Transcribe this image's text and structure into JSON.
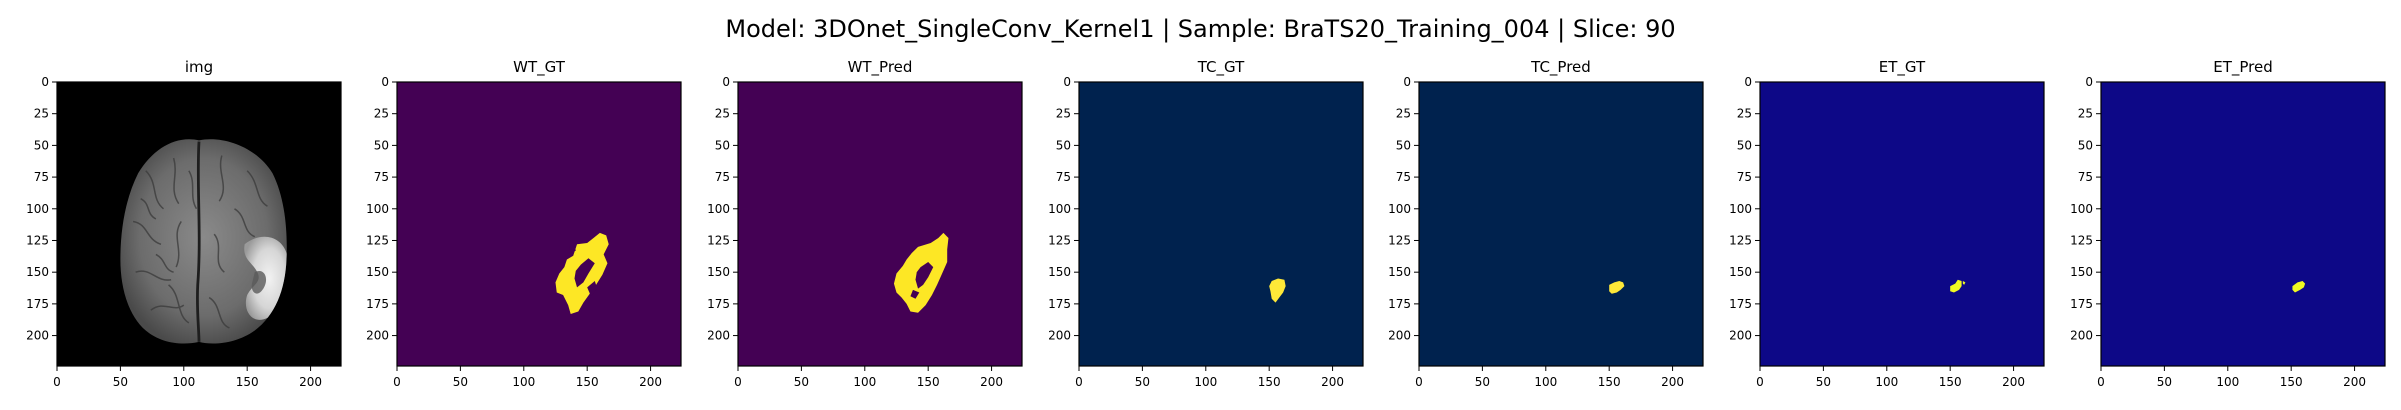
{
  "figure": {
    "suptitle": "Model: 3DOnet_SingleConv_Kernel1 | Sample: BraTS20_Training_004 | Slice: 90"
  },
  "axes": {
    "x_ticks": [
      "0",
      "50",
      "100",
      "150",
      "200"
    ],
    "y_ticks": [
      "0",
      "25",
      "50",
      "75",
      "100",
      "125",
      "150",
      "175",
      "200"
    ]
  },
  "panels": [
    {
      "title": "img",
      "kind": "brain-mri",
      "background": "#000000",
      "foreground": "#ffffff"
    },
    {
      "title": "WT_GT",
      "kind": "mask-wt-gt",
      "background": "#440154",
      "foreground": "#fde725"
    },
    {
      "title": "WT_Pred",
      "kind": "mask-wt-pred",
      "background": "#440154",
      "foreground": "#fde725"
    },
    {
      "title": "TC_GT",
      "kind": "mask-tc-gt",
      "background": "#00224e",
      "foreground": "#fee838"
    },
    {
      "title": "TC_Pred",
      "kind": "mask-tc-pred",
      "background": "#00224e",
      "foreground": "#fee838"
    },
    {
      "title": "ET_GT",
      "kind": "mask-et-gt",
      "background": "#0d0887",
      "foreground": "#f0f921"
    },
    {
      "title": "ET_Pred",
      "kind": "mask-et-pred",
      "background": "#0d0887",
      "foreground": "#f0f921"
    }
  ]
}
